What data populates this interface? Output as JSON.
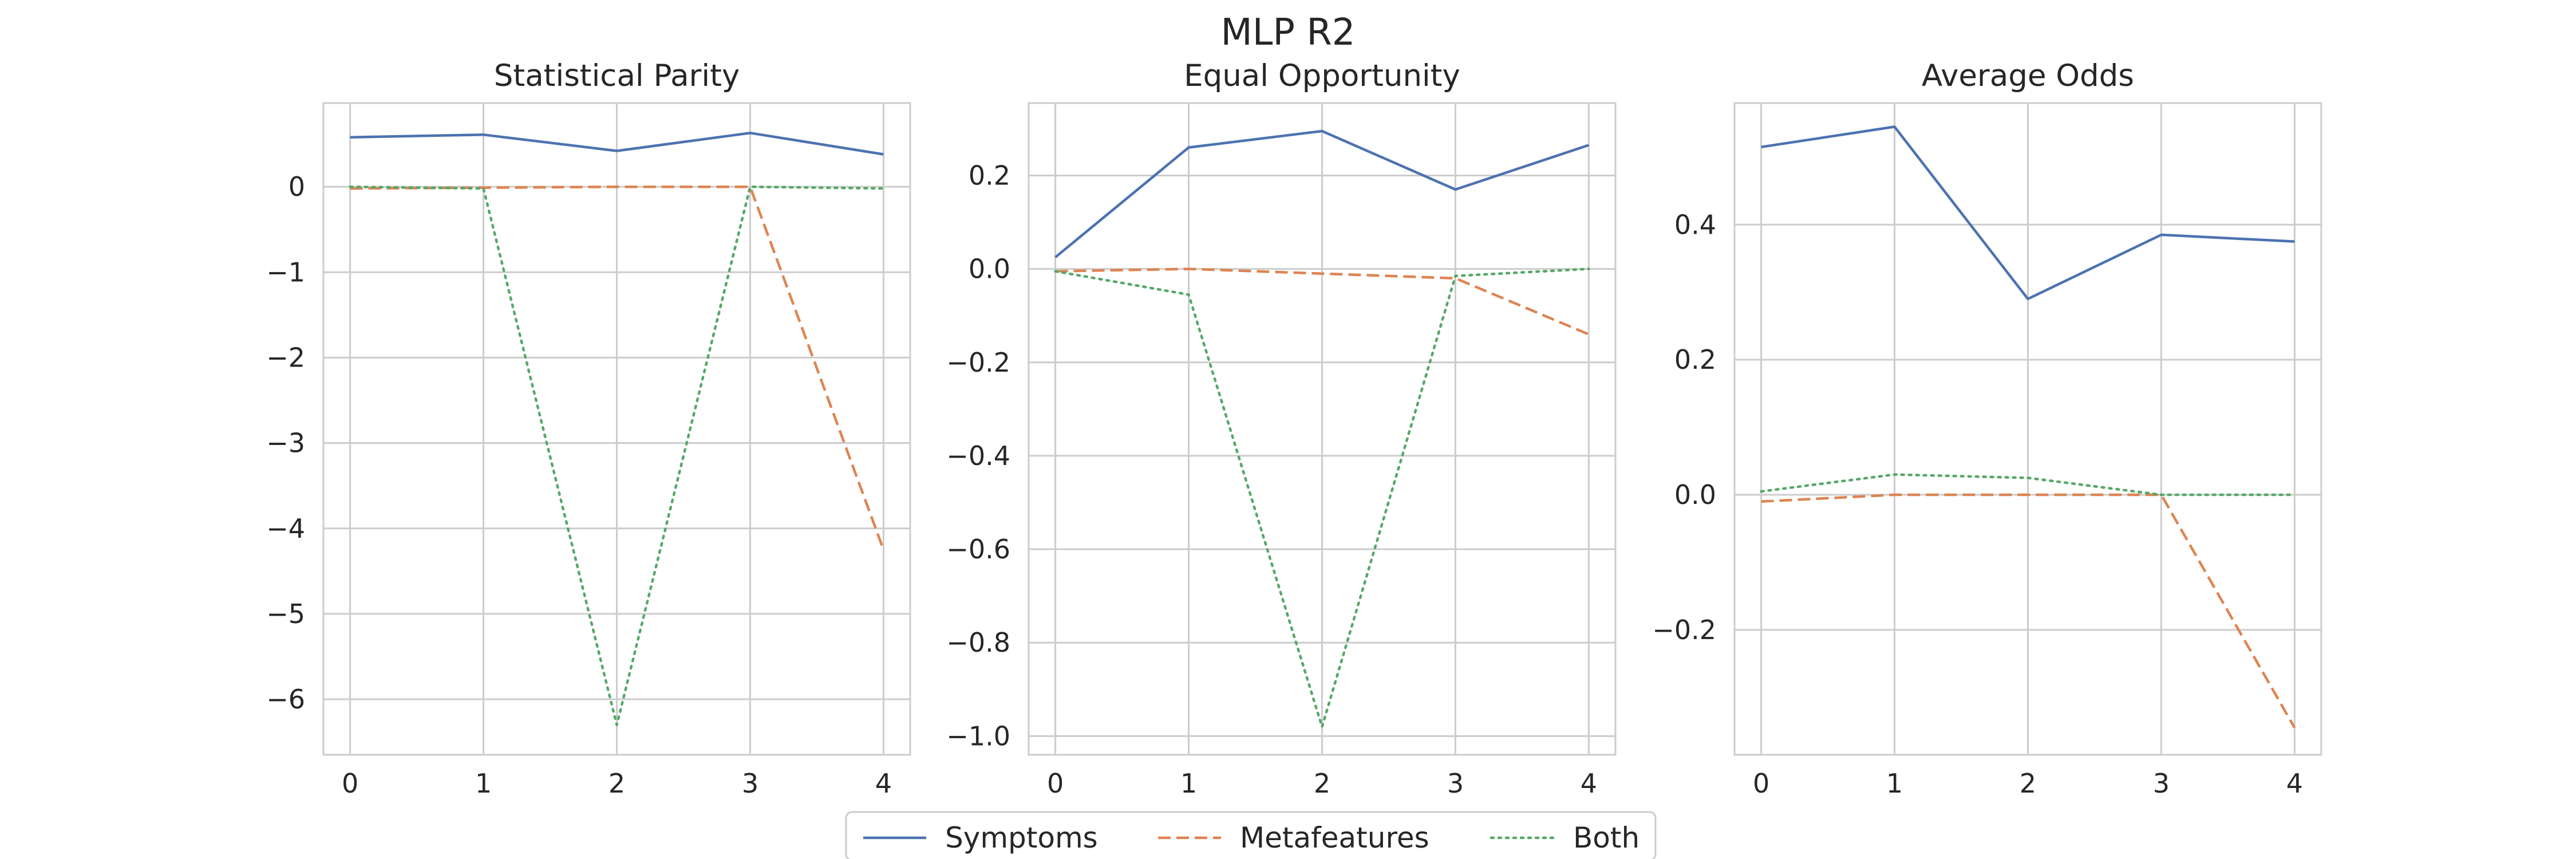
{
  "figure": {
    "title": "MLP R2",
    "legend": {
      "placement": "bottom-center",
      "entries": [
        {
          "label": "Symptoms",
          "color": "#4c72b0",
          "style": "solid"
        },
        {
          "label": "Metafeatures",
          "color": "#dd8452",
          "style": "dashed"
        },
        {
          "label": "Both",
          "color": "#55a868",
          "style": "dotted"
        }
      ]
    }
  },
  "chart_data": [
    {
      "type": "line",
      "title": "Statistical Parity",
      "x": [
        0,
        1,
        2,
        3,
        4
      ],
      "xlim": [
        -0.2,
        4.2
      ],
      "ylim": [
        -6.65,
        0.98
      ],
      "yticks": [
        0,
        -1,
        -2,
        -3,
        -4,
        -5,
        -6
      ],
      "ytick_labels": [
        "0",
        "−1",
        "−2",
        "−3",
        "−4",
        "−5",
        "−6"
      ],
      "grid": true,
      "series": [
        {
          "name": "Symptoms",
          "color": "#4c72b0",
          "style": "solid",
          "values": [
            0.58,
            0.61,
            0.42,
            0.63,
            0.38
          ]
        },
        {
          "name": "Metafeatures",
          "color": "#dd8452",
          "style": "dashed",
          "values": [
            -0.02,
            -0.01,
            0.0,
            0.0,
            -4.25
          ]
        },
        {
          "name": "Both",
          "color": "#55a868",
          "style": "dotted",
          "values": [
            0.0,
            -0.02,
            -6.3,
            0.0,
            -0.02
          ]
        }
      ]
    },
    {
      "type": "line",
      "title": "Equal Opportunity",
      "x": [
        0,
        1,
        2,
        3,
        4
      ],
      "xlim": [
        -0.2,
        4.2
      ],
      "ylim": [
        -1.04,
        0.355
      ],
      "yticks": [
        0.2,
        0.0,
        -0.2,
        -0.4,
        -0.6,
        -0.8,
        -1.0
      ],
      "ytick_labels": [
        "0.2",
        "0.0",
        "−0.2",
        "−0.4",
        "−0.6",
        "−0.8",
        "−1.0"
      ],
      "grid": true,
      "series": [
        {
          "name": "Symptoms",
          "color": "#4c72b0",
          "style": "solid",
          "values": [
            0.025,
            0.26,
            0.295,
            0.17,
            0.265
          ]
        },
        {
          "name": "Metafeatures",
          "color": "#dd8452",
          "style": "dashed",
          "values": [
            -0.005,
            0.0,
            -0.01,
            -0.02,
            -0.14
          ]
        },
        {
          "name": "Both",
          "color": "#55a868",
          "style": "dotted",
          "values": [
            -0.005,
            -0.055,
            -0.98,
            -0.015,
            0.0
          ]
        }
      ]
    },
    {
      "type": "line",
      "title": "Average Odds",
      "x": [
        0,
        1,
        2,
        3,
        4
      ],
      "xlim": [
        -0.2,
        4.2
      ],
      "ylim": [
        -0.385,
        0.58
      ],
      "yticks": [
        0.4,
        0.2,
        0.0,
        -0.2
      ],
      "ytick_labels": [
        "0.4",
        "0.2",
        "0.0",
        "−0.2"
      ],
      "grid": true,
      "series": [
        {
          "name": "Symptoms",
          "color": "#4c72b0",
          "style": "solid",
          "values": [
            0.515,
            0.545,
            0.29,
            0.385,
            0.375
          ]
        },
        {
          "name": "Metafeatures",
          "color": "#dd8452",
          "style": "dashed",
          "values": [
            -0.01,
            0.0,
            0.0,
            0.0,
            -0.345
          ]
        },
        {
          "name": "Both",
          "color": "#55a868",
          "style": "dotted",
          "values": [
            0.005,
            0.03,
            0.025,
            0.0,
            0.0
          ]
        }
      ]
    }
  ]
}
